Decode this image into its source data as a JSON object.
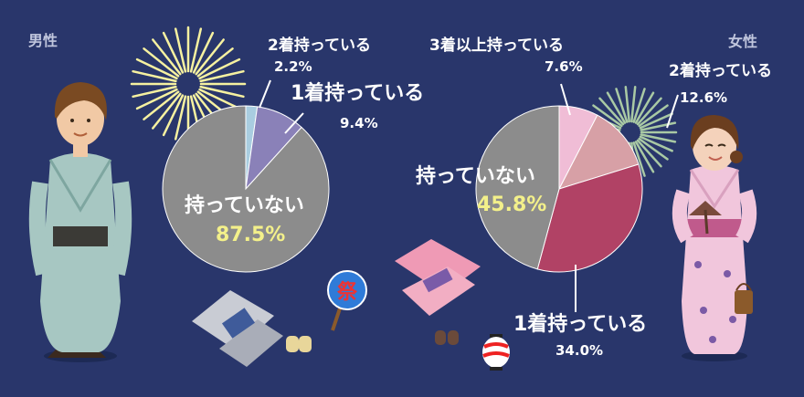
{
  "male": {
    "gender_label": "男性",
    "labels": {
      "two": {
        "text": "2着持っている",
        "pct": "2.2%"
      },
      "one": {
        "text": "1着持っている",
        "pct": "9.4%"
      },
      "none": {
        "text": "持っていない",
        "pct": "87.5%"
      }
    }
  },
  "female": {
    "gender_label": "女性",
    "labels": {
      "three": {
        "text": "3着以上持っている",
        "pct": "7.6%"
      },
      "two": {
        "text": "2着持っている",
        "pct": "12.6%"
      },
      "one": {
        "text": "1着持っている",
        "pct": "34.0%"
      },
      "none": {
        "text": "持っていない",
        "pct": "45.8%"
      }
    }
  },
  "decor": {
    "fan_text": "祭"
  },
  "chart_data": [
    {
      "type": "pie",
      "title": "男性",
      "categories": [
        "2着持っている",
        "1着持っている",
        "持っていない"
      ],
      "values": [
        2.2,
        9.4,
        87.5
      ],
      "colors": [
        "#a9cde0",
        "#8a81b8",
        "#8c8c8c"
      ]
    },
    {
      "type": "pie",
      "title": "女性",
      "categories": [
        "3着以上持っている",
        "2着持っている",
        "1着持っている",
        "持っていない"
      ],
      "values": [
        7.6,
        12.6,
        34.0,
        45.8
      ],
      "colors": [
        "#f0bdd6",
        "#d7a0a6",
        "#b14265",
        "#8c8c8c"
      ]
    }
  ]
}
